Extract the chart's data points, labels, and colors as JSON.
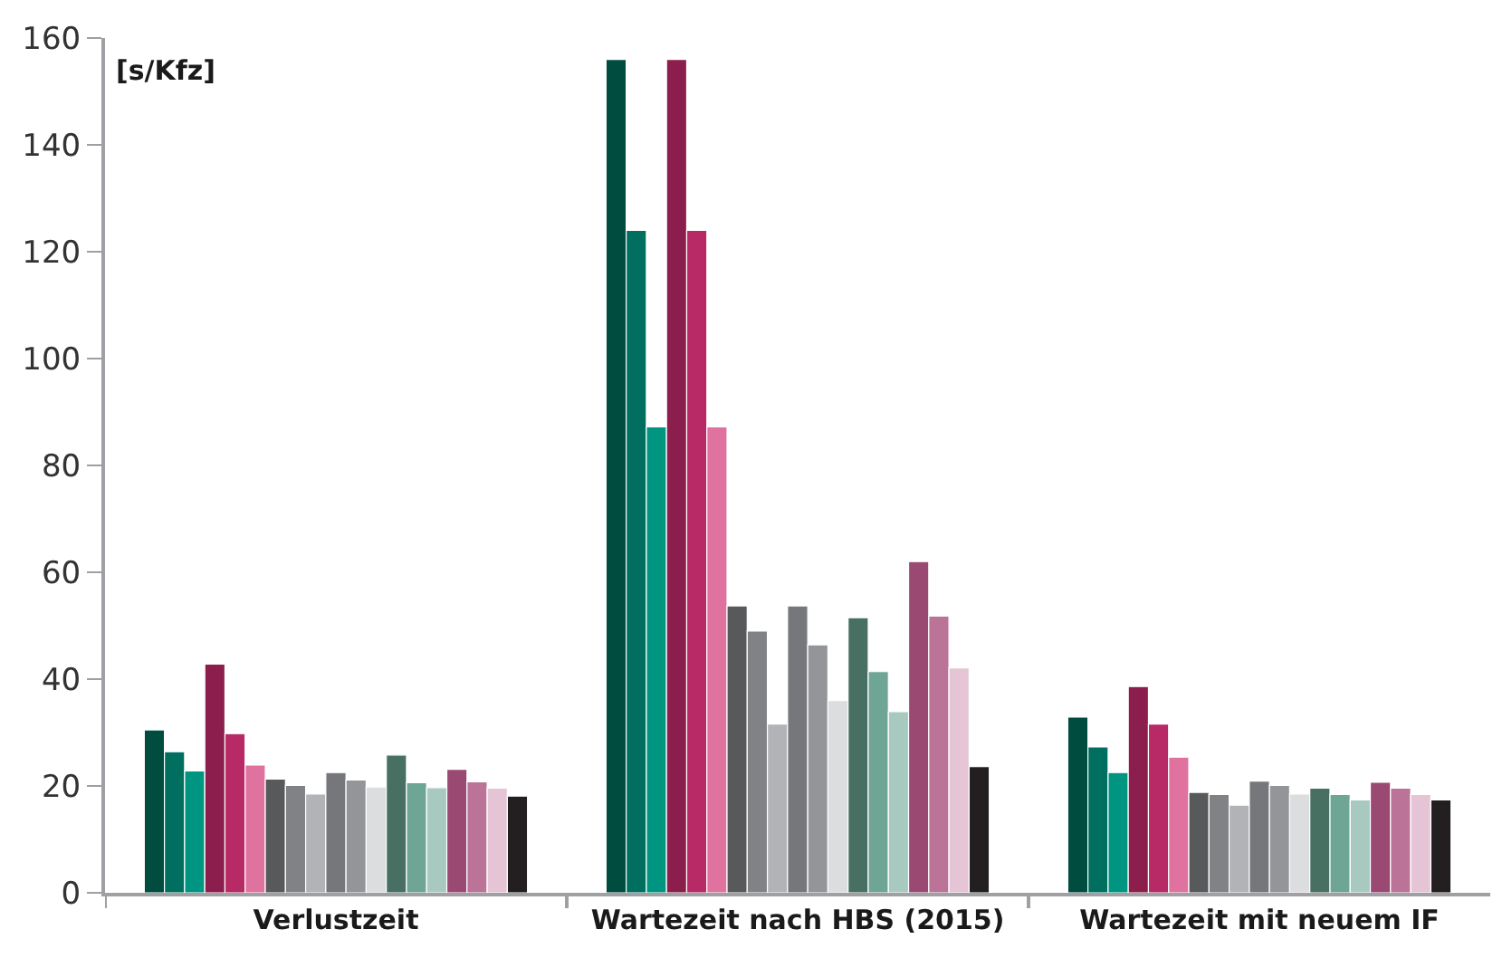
{
  "chart_data": {
    "type": "bar",
    "ylabel": "[s/Kfz]",
    "categories": [
      "Verlustzeit",
      "Wartezeit nach HBS (2015)",
      "Wartezeit mit neuem IF"
    ],
    "series": [
      {
        "color": "#004c3f",
        "values": [
          30.5,
          156,
          32.9
        ]
      },
      {
        "color": "#006f5f",
        "values": [
          26.4,
          124,
          27.3
        ]
      },
      {
        "color": "#009580",
        "values": [
          22.8,
          87.2,
          22.5
        ]
      },
      {
        "color": "#8b1e4c",
        "values": [
          42.8,
          156,
          38.6
        ]
      },
      {
        "color": "#b72a66",
        "values": [
          29.8,
          124,
          31.6
        ]
      },
      {
        "color": "#e0729f",
        "values": [
          23.9,
          87.2,
          25.4
        ]
      },
      {
        "color": "#58595b",
        "values": [
          21.3,
          53.7,
          18.8
        ]
      },
      {
        "color": "#808285",
        "values": [
          20.1,
          49.0,
          18.4
        ]
      },
      {
        "color": "#b1b3b6",
        "values": [
          18.5,
          31.6,
          16.4
        ]
      },
      {
        "color": "#76777a",
        "values": [
          22.5,
          53.7,
          20.9
        ]
      },
      {
        "color": "#939598",
        "values": [
          21.1,
          46.4,
          20.1
        ]
      },
      {
        "color": "#dcdddf",
        "values": [
          19.8,
          36.0,
          18.5
        ]
      },
      {
        "color": "#477063",
        "values": [
          25.8,
          51.5,
          19.6
        ]
      },
      {
        "color": "#6fa595",
        "values": [
          20.6,
          41.4,
          18.4
        ]
      },
      {
        "color": "#a8c9c0",
        "values": [
          19.7,
          33.9,
          17.4
        ]
      },
      {
        "color": "#9a4a72",
        "values": [
          23.1,
          62.0,
          20.7
        ]
      },
      {
        "color": "#bb7398",
        "values": [
          20.8,
          51.8,
          19.6
        ]
      },
      {
        "color": "#e4c4d5",
        "values": [
          19.6,
          42.1,
          18.4
        ]
      },
      {
        "color": "#231f20",
        "values": [
          18.1,
          23.6,
          17.4
        ]
      }
    ],
    "ylim": [
      0,
      160
    ],
    "yticks": [
      0,
      20,
      40,
      60,
      80,
      100,
      120,
      140,
      160
    ]
  }
}
